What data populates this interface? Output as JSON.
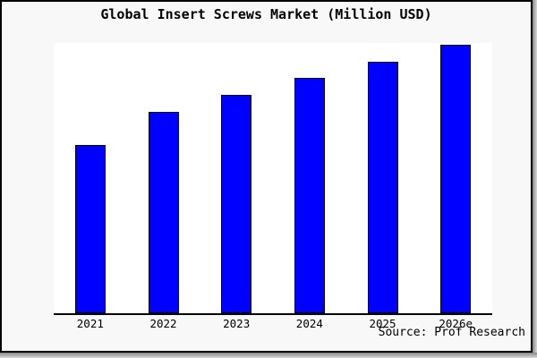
{
  "chart": {
    "title": "Global Insert Screws Market (Million USD)",
    "source_credit": "Source: Prof Research"
  },
  "chart_data": {
    "type": "bar",
    "title": "Global Insert Screws Market (Million USD)",
    "categories": [
      "2021",
      "2022",
      "2023",
      "2024",
      "2025",
      "2026e"
    ],
    "values": [
      62.7,
      75.0,
      81.3,
      87.7,
      93.7,
      100.0
    ],
    "value_note": "no y-axis or data labels shown in the figure; values are relative bar heights with 2026e = 100",
    "xlabel": "",
    "ylabel": "",
    "ylim": [
      0,
      101
    ],
    "grid": false,
    "legend": false,
    "annotations": [
      "Source: Prof Research"
    ]
  },
  "colors": {
    "bar_fill": "#0000ff",
    "bar_border": "#000000",
    "plot_background": "#ffffff",
    "figure_background": "#f8f8f8",
    "axis_line": "#000000",
    "border": "#000000",
    "text": "#000000"
  }
}
